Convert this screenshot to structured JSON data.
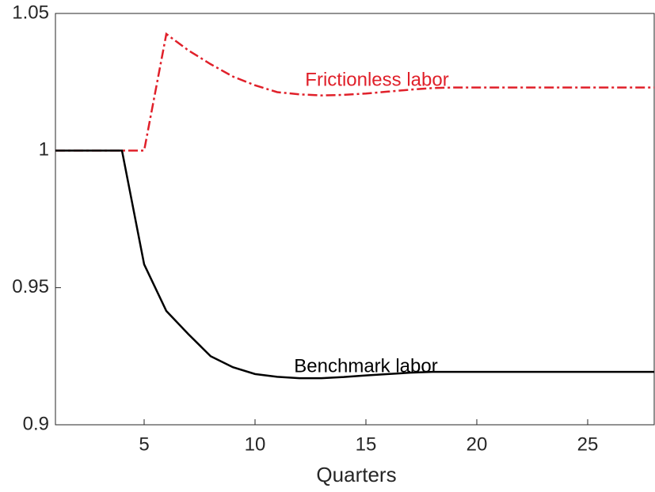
{
  "chart_data": {
    "type": "line",
    "x": [
      1,
      2,
      3,
      4,
      5,
      6,
      7,
      8,
      9,
      10,
      11,
      12,
      13,
      14,
      15,
      16,
      17,
      18,
      19,
      20,
      21,
      22,
      23,
      24,
      25,
      26,
      27,
      28
    ],
    "series": [
      {
        "color": "#e0202a",
        "dash": true,
        "values": [
          1,
          1,
          1,
          1,
          1,
          1.0425,
          1.0365,
          1.0315,
          1.027,
          1.0238,
          1.0213,
          1.0205,
          1.0201,
          1.0203,
          1.0208,
          1.0215,
          1.0222,
          1.0228,
          1.023,
          1.023,
          1.023,
          1.023,
          1.023,
          1.023,
          1.023,
          1.023,
          1.023,
          1.023
        ]
      },
      {
        "color": "#000000",
        "dash": false,
        "values": [
          1,
          1,
          1,
          1,
          0.9585,
          0.9415,
          0.933,
          0.925,
          0.921,
          0.9185,
          0.9175,
          0.917,
          0.917,
          0.9174,
          0.918,
          0.9185,
          0.919,
          0.9193,
          0.9193,
          0.9193,
          0.9193,
          0.9193,
          0.9193,
          0.9193,
          0.9193,
          0.9193,
          0.9193,
          0.9193
        ]
      }
    ],
    "annotations": [
      {
        "text": "Frictionless labor",
        "x": 15.5,
        "y": 1.0255,
        "color": "#e0202a"
      },
      {
        "text": "Benchmark labor",
        "x": 15,
        "y": 0.921,
        "color": "#000000"
      }
    ],
    "xlabel": "Quarters",
    "xlim": [
      1,
      28
    ],
    "ylim": [
      0.9,
      1.05
    ],
    "xticks": [
      5,
      10,
      15,
      20,
      25
    ],
    "yticks": [
      0.9,
      0.95,
      1,
      1.05
    ]
  }
}
